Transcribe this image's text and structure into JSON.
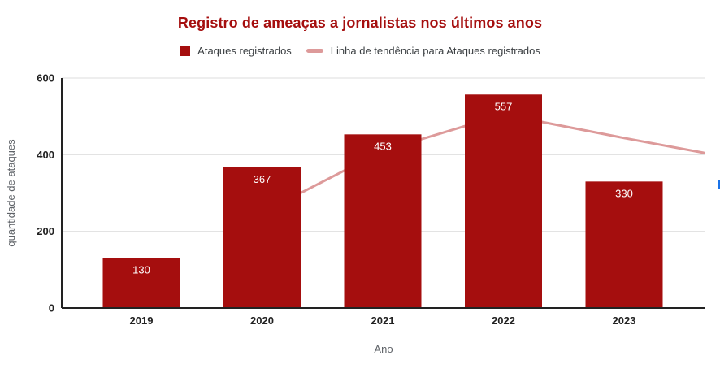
{
  "chart": {
    "title": "Registro de ameaças a jornalistas nos últimos anos",
    "title_color": "#a50e0e",
    "legend": {
      "bar_item_label": "Ataques registrados",
      "trend_item_label": "Linha de tendência para Ataques registrados"
    }
  },
  "chart_data": {
    "type": "bar",
    "title": "Registro de ameaças a jornalistas nos últimos anos",
    "categories": [
      "2019",
      "2020",
      "2021",
      "2022",
      "2023"
    ],
    "series": [
      {
        "name": "Ataques registrados",
        "type": "bar",
        "color": "#a50e0e",
        "values": [
          130,
          367,
          453,
          557,
          330
        ],
        "data_labels": [
          "130",
          "367",
          "453",
          "557",
          "330"
        ],
        "data_label_color": "#ffffff"
      },
      {
        "name": "Linha de tendência para Ataques registrados",
        "type": "trendline",
        "color": "#dd9a9a",
        "note": "2-period moving average of Ataques registrados, extended to right plot edge",
        "points": [
          {
            "x_index": 1,
            "value": 248.5
          },
          {
            "x_index": 2,
            "value": 410
          },
          {
            "x_index": 3,
            "value": 505
          },
          {
            "x_index": 4,
            "value": 443.5
          },
          {
            "x_index": 4.66,
            "value": 405
          }
        ]
      }
    ],
    "xlabel": "Ano",
    "ylabel": "quantidade de ataques",
    "ylim": [
      0,
      600
    ],
    "yticks": [
      0,
      200,
      400,
      600
    ],
    "grid": true,
    "legend_position": "top",
    "style": {
      "grid_color": "#e3e3e3",
      "axis_line_color": "#222222",
      "tick_label_color": "#222222",
      "axis_title_color": "#5f6368",
      "legend_text_color": "#3c4043",
      "background": "#ffffff"
    }
  },
  "artifacts": {
    "blue_edge_mark_color": "#1a73e8"
  }
}
